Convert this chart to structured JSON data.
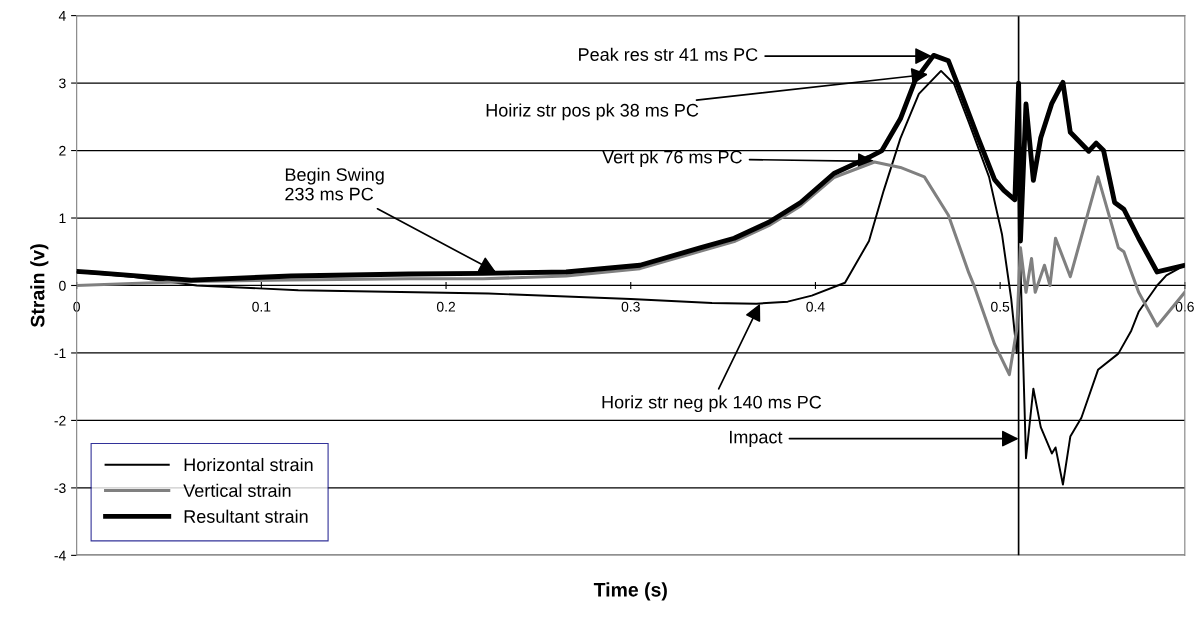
{
  "chart_data": {
    "type": "line",
    "xlabel": "Time (s)",
    "ylabel": "Strain (v)",
    "xlim": [
      0,
      0.6
    ],
    "ylim": [
      -4,
      4
    ],
    "xticks": [
      {
        "value": 0,
        "label": "0"
      },
      0.1,
      0.2,
      0.3,
      0.4,
      0.5,
      0.6
    ],
    "yticks": [
      -4,
      -3,
      -2,
      -1,
      0,
      1,
      2,
      3,
      4
    ],
    "grid": "y",
    "legend": "bottom left",
    "marker": "none",
    "line_style": "solid",
    "ref_lines": [
      {
        "axis": "x",
        "value": 0.51,
        "color": "#000000"
      }
    ],
    "annotations": [
      {
        "text": "Peak res str 41 ms PC",
        "x": 0.463,
        "y": 3.4
      },
      {
        "text": "Hoiriz str pos pk 38 ms PC",
        "x": 0.461,
        "y": 3.13
      },
      {
        "text": "Vert pk 76 ms PC",
        "x": 0.432,
        "y": 1.84
      },
      {
        "text": "Begin Swing\n233 ms PC",
        "x": 0.227,
        "y": 0.2
      },
      {
        "text": "Horiz str neg pk 140 ms PC",
        "x": 0.37,
        "y": -0.27
      },
      {
        "text": "Impact",
        "x": 0.51,
        "y": -2.27
      }
    ],
    "series": [
      {
        "name": "Horizontal strain",
        "color": "#000000",
        "x": [
          0,
          0.03,
          0.065,
          0.12,
          0.223,
          0.3,
          0.344,
          0.368,
          0.385,
          0.398,
          0.416,
          0.429,
          0.437,
          0.446,
          0.456,
          0.468,
          0.475,
          0.483,
          0.494,
          0.501,
          0.506,
          0.509,
          0.511,
          0.514,
          0.518,
          0.522,
          0.528,
          0.53,
          0.534,
          0.538,
          0.544,
          0.553,
          0.564,
          0.571,
          0.575,
          0.585,
          0.59,
          0.6
        ],
        "values": [
          0.2,
          0.13,
          0.0,
          -0.07,
          -0.12,
          -0.2,
          -0.26,
          -0.27,
          -0.24,
          -0.15,
          0.04,
          0.66,
          1.41,
          2.18,
          2.84,
          3.18,
          2.99,
          2.42,
          1.61,
          0.76,
          -0.2,
          -1.0,
          0.3,
          -2.56,
          -1.53,
          -2.1,
          -2.49,
          -2.4,
          -2.95,
          -2.24,
          -1.96,
          -1.25,
          -1.01,
          -0.67,
          -0.39,
          0.0,
          0.15,
          0.3
        ]
      },
      {
        "name": "Vertical strain",
        "color": "#808080",
        "x": [
          0,
          0.03,
          0.062,
          0.116,
          0.18,
          0.22,
          0.265,
          0.305,
          0.338,
          0.356,
          0.375,
          0.392,
          0.41,
          0.432,
          0.446,
          0.459,
          0.472,
          0.483,
          0.486,
          0.497,
          0.505,
          0.509,
          0.511,
          0.514,
          0.517,
          0.519,
          0.524,
          0.527,
          0.53,
          0.538,
          0.553,
          0.564,
          0.567,
          0.575,
          0.585,
          0.6
        ],
        "values": [
          0.0,
          0.03,
          0.06,
          0.08,
          0.1,
          0.1,
          0.14,
          0.25,
          0.51,
          0.65,
          0.89,
          1.18,
          1.6,
          1.83,
          1.75,
          1.61,
          1.04,
          0.19,
          -0.01,
          -0.87,
          -1.32,
          -0.65,
          0.56,
          -0.1,
          0.4,
          -0.1,
          0.3,
          0.0,
          0.7,
          0.13,
          1.61,
          0.56,
          0.5,
          -0.1,
          -0.6,
          -0.1
        ]
      },
      {
        "name": "Resultant strain",
        "color": "#000000",
        "x": [
          0,
          0.01,
          0.062,
          0.116,
          0.18,
          0.22,
          0.265,
          0.305,
          0.338,
          0.356,
          0.375,
          0.392,
          0.41,
          0.429,
          0.436,
          0.446,
          0.454,
          0.464,
          0.472,
          0.479,
          0.488,
          0.497,
          0.502,
          0.508,
          0.51,
          0.511,
          0.514,
          0.518,
          0.522,
          0.528,
          0.534,
          0.538,
          0.548,
          0.552,
          0.556,
          0.562,
          0.567,
          0.575,
          0.585,
          0.6
        ],
        "values": [
          0.21,
          0.19,
          0.08,
          0.14,
          0.17,
          0.18,
          0.2,
          0.3,
          0.56,
          0.7,
          0.94,
          1.23,
          1.66,
          1.9,
          2.0,
          2.47,
          3.04,
          3.41,
          3.33,
          2.84,
          2.19,
          1.57,
          1.41,
          1.27,
          3.0,
          0.66,
          2.69,
          1.56,
          2.19,
          2.7,
          3.01,
          2.27,
          1.99,
          2.11,
          2.0,
          1.23,
          1.13,
          0.7,
          0.2,
          0.3
        ]
      }
    ]
  }
}
